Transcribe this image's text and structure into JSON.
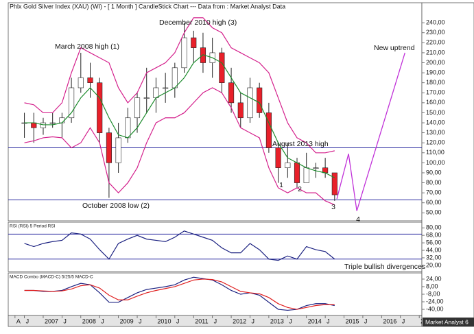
{
  "chart_data": [
    {
      "type": "candlestick",
      "title": "Phlx Gold Silver Index (XAU) (WI) - [ 1 Month ] CandleStick Chart --- Data from : Market Analyst Data",
      "x": [
        2006.5,
        2006.75,
        2007,
        2007.25,
        2007.5,
        2007.75,
        2008,
        2008.25,
        2008.5,
        2008.75,
        2009,
        2009.25,
        2009.5,
        2009.75,
        2010,
        2010.25,
        2010.5,
        2010.75,
        2011,
        2011.25,
        2011.5,
        2011.75,
        2012,
        2012.25,
        2012.5,
        2012.75,
        2013,
        2013.25,
        2013.5,
        2013.75,
        2014,
        2014.25,
        2014.5,
        2014.75
      ],
      "open": [
        140,
        140,
        135,
        140,
        140,
        145,
        175,
        185,
        180,
        130,
        100,
        125,
        145,
        165,
        165,
        175,
        175,
        195,
        225,
        215,
        200,
        210,
        180,
        160,
        145,
        175,
        150,
        115,
        95,
        100,
        80,
        95,
        95,
        90
      ],
      "high": [
        150,
        150,
        145,
        150,
        150,
        185,
        210,
        200,
        185,
        135,
        140,
        155,
        170,
        195,
        185,
        190,
        200,
        240,
        232,
        230,
        225,
        215,
        195,
        170,
        185,
        180,
        160,
        120,
        120,
        105,
        110,
        100,
        105,
        90
      ],
      "low": [
        125,
        120,
        128,
        135,
        125,
        140,
        170,
        165,
        120,
        65,
        90,
        120,
        130,
        150,
        150,
        160,
        165,
        190,
        200,
        190,
        185,
        170,
        150,
        135,
        140,
        145,
        110,
        80,
        85,
        75,
        80,
        85,
        85,
        62
      ],
      "close": [
        140,
        135,
        140,
        140,
        145,
        175,
        185,
        180,
        130,
        100,
        125,
        145,
        165,
        165,
        175,
        175,
        195,
        225,
        215,
        200,
        210,
        180,
        160,
        145,
        175,
        150,
        115,
        95,
        100,
        80,
        95,
        95,
        90,
        68
      ],
      "up_color": "#ffffff",
      "down_color": "#e8202a",
      "series": [
        {
          "color": "#d4208c",
          "values": [
            160,
            158,
            150,
            150,
            160,
            190,
            215,
            210,
            205,
            200,
            175,
            160,
            170,
            190,
            195,
            200,
            210,
            230,
            245,
            245,
            235,
            230,
            215,
            210,
            205,
            200,
            190,
            165,
            140,
            125,
            120,
            110,
            110,
            112
          ]
        },
        {
          "color": "#1a8a2a",
          "values": [
            140,
            140,
            138,
            138,
            140,
            150,
            165,
            175,
            165,
            145,
            128,
            125,
            135,
            150,
            165,
            170,
            175,
            185,
            200,
            208,
            205,
            200,
            185,
            170,
            165,
            160,
            140,
            120,
            105,
            100,
            95,
            92,
            90,
            85
          ]
        },
        {
          "color": "#d4208c",
          "values": [
            120,
            122,
            125,
            126,
            125,
            115,
            120,
            135,
            120,
            80,
            70,
            80,
            95,
            120,
            140,
            145,
            145,
            150,
            160,
            170,
            175,
            170,
            155,
            135,
            130,
            125,
            95,
            75,
            70,
            75,
            70,
            70,
            62,
            58
          ]
        }
      ],
      "projection": {
        "color": "#c030d8",
        "x": [
          2014.81,
          2015.12,
          2015.34,
          2016.62
        ],
        "values": [
          64,
          109,
          52,
          210
        ]
      },
      "levels": [
        {
          "value": 115,
          "label": "August 2013 high"
        },
        {
          "value": 63,
          "label": "October 2008 low (2)"
        }
      ],
      "level_color": "#2a2aa0",
      "annotations": [
        "March 2008 high (1)",
        "December 2010 high (3)",
        "New uptrend",
        "1",
        "2",
        "3",
        "4"
      ],
      "xlim": [
        2006.07,
        2017.07
      ],
      "ylim": [
        42,
        260
      ],
      "yticks": [
        {
          "value": 240,
          "label": "240,00"
        },
        {
          "value": 230,
          "label": "230,00"
        },
        {
          "value": 220,
          "label": "220,00"
        },
        {
          "value": 210,
          "label": "210,00"
        },
        {
          "value": 200,
          "label": "200,00"
        },
        {
          "value": 190,
          "label": "190,00"
        },
        {
          "value": 180,
          "label": "180,00"
        },
        {
          "value": 170,
          "label": "170,00"
        },
        {
          "value": 160,
          "label": "160,00"
        },
        {
          "value": 150,
          "label": "150,00"
        },
        {
          "value": 140,
          "label": "140,00"
        },
        {
          "value": 130,
          "label": "130,00"
        },
        {
          "value": 120,
          "label": "120,00"
        },
        {
          "value": 110,
          "label": "110,00"
        },
        {
          "value": 100,
          "label": "100,00"
        },
        {
          "value": 90,
          "label": "90,00"
        },
        {
          "value": 80,
          "label": "80,00"
        },
        {
          "value": 70,
          "label": "70,00"
        },
        {
          "value": 60,
          "label": "60,00"
        },
        {
          "value": 50,
          "label": "50,00"
        }
      ]
    },
    {
      "type": "line",
      "title": "RSI (RSI) 5 Period RSI",
      "series": [
        {
          "color": "#1a2080",
          "values": [
            55,
            50,
            55,
            58,
            60,
            72,
            70,
            62,
            45,
            30,
            55,
            62,
            68,
            62,
            60,
            58,
            65,
            75,
            70,
            65,
            60,
            48,
            40,
            40,
            55,
            45,
            30,
            28,
            35,
            30,
            50,
            45,
            42,
            30
          ]
        }
      ],
      "levels": [
        70,
        30
      ],
      "level_color": "#2a2aa0",
      "annotations": [
        "Triple bullish divergences"
      ],
      "ylim": [
        10,
        89
      ],
      "yticks": [
        {
          "value": 80,
          "label": "80,00"
        },
        {
          "value": 68,
          "label": "68,00"
        },
        {
          "value": 56,
          "label": "56,00"
        },
        {
          "value": 44,
          "label": "44,00"
        },
        {
          "value": 32,
          "label": "32,00"
        },
        {
          "value": 20,
          "label": "20,00"
        }
      ]
    },
    {
      "type": "line",
      "title": "MACD Combo (MACD-C) 5/25/5 MACD-C",
      "series": [
        {
          "color": "#1a2080",
          "values": [
            0,
            0,
            -2,
            -2,
            0,
            8,
            15,
            12,
            -5,
            -25,
            -25,
            -15,
            -5,
            2,
            5,
            8,
            12,
            22,
            28,
            25,
            22,
            12,
            0,
            -8,
            -5,
            -10,
            -25,
            -40,
            -42,
            -40,
            -32,
            -28,
            -28,
            -32
          ]
        },
        {
          "color": "#e02020",
          "values": [
            0,
            0,
            -1,
            -2,
            -1,
            3,
            10,
            12,
            5,
            -10,
            -20,
            -20,
            -12,
            -5,
            0,
            4,
            8,
            15,
            22,
            24,
            23,
            18,
            8,
            -2,
            -5,
            -7,
            -15,
            -28,
            -36,
            -40,
            -36,
            -32,
            -30,
            -30
          ]
        }
      ],
      "ylim": [
        -53,
        37
      ],
      "yticks": [
        {
          "value": 24,
          "label": "24,00"
        },
        {
          "value": 8,
          "label": "8,00"
        },
        {
          "value": -8,
          "label": "-8,00"
        },
        {
          "value": -24,
          "label": "-24,00"
        },
        {
          "value": -40,
          "label": "-40,00"
        }
      ],
      "xticks": [
        {
          "value": 2006.25,
          "label": "A"
        },
        {
          "value": 2006.5,
          "label": "J"
        },
        2007,
        {
          "value": 2007.5,
          "label": "J"
        },
        2008,
        {
          "value": 2008.5,
          "label": "J"
        },
        2009,
        {
          "value": 2009.5,
          "label": "J"
        },
        2010,
        {
          "value": 2010.5,
          "label": "J"
        },
        2011,
        {
          "value": 2011.5,
          "label": "J"
        },
        2012,
        {
          "value": 2012.5,
          "label": "J"
        },
        2013,
        {
          "value": 2013.5,
          "label": "J"
        },
        2014,
        {
          "value": 2014.5,
          "label": "J"
        },
        2015,
        {
          "value": 2015.5,
          "label": "J"
        },
        2016,
        {
          "value": 2016.5,
          "label": "J"
        },
        2017
      ],
      "source": "Market Analyst 6"
    }
  ]
}
